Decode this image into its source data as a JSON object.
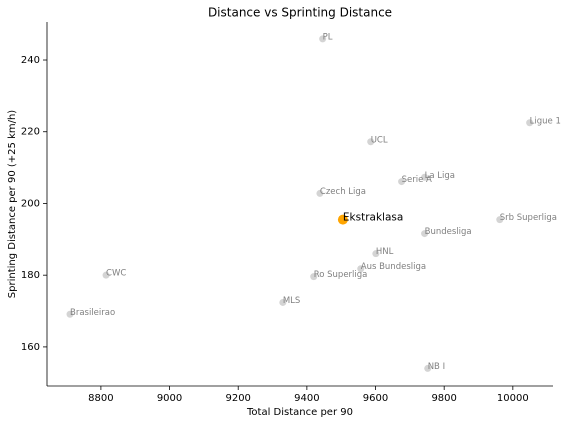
{
  "chart_data": {
    "type": "scatter",
    "title": "Distance vs Sprinting Distance",
    "x_label": "Total Distance per 90",
    "y_label": "Sprinting Distance per 90 (+25 km/h)",
    "labels": [
      "PL",
      "Ligue 1",
      "UCL",
      "La Liga",
      "Serie A",
      "Czech Liga",
      "Ekstraklasa",
      "Srb Superliga",
      "Bundesliga",
      "HNL",
      "Aus Bundesliga",
      "Ro Superliga",
      "CWC",
      "MLS",
      "Brasileirao",
      "NB I"
    ],
    "x": [
      9446,
      10049,
      9586,
      9743,
      9676,
      9438,
      9505,
      9962,
      9743,
      9601,
      9557,
      9420,
      8815,
      9330,
      8710,
      9752
    ],
    "y": [
      245.9,
      222.5,
      217.2,
      207.3,
      206.1,
      202.8,
      195.5,
      195.5,
      191.6,
      186.0,
      181.8,
      179.6,
      180.0,
      172.4,
      169.1,
      154.0
    ],
    "highlight": [
      false,
      false,
      false,
      false,
      false,
      false,
      true,
      false,
      false,
      false,
      false,
      false,
      false,
      false,
      false,
      false
    ],
    "color": "#cccccc",
    "highlight_color": "#ffa500",
    "xlim": [
      8643,
      10117
    ],
    "ylim": [
      149.1,
      250.6
    ],
    "xticks": [
      8800,
      9000,
      9200,
      9400,
      9600,
      9800,
      10000
    ],
    "yticks": [
      160,
      180,
      200,
      220,
      240
    ],
    "grid": false
  }
}
